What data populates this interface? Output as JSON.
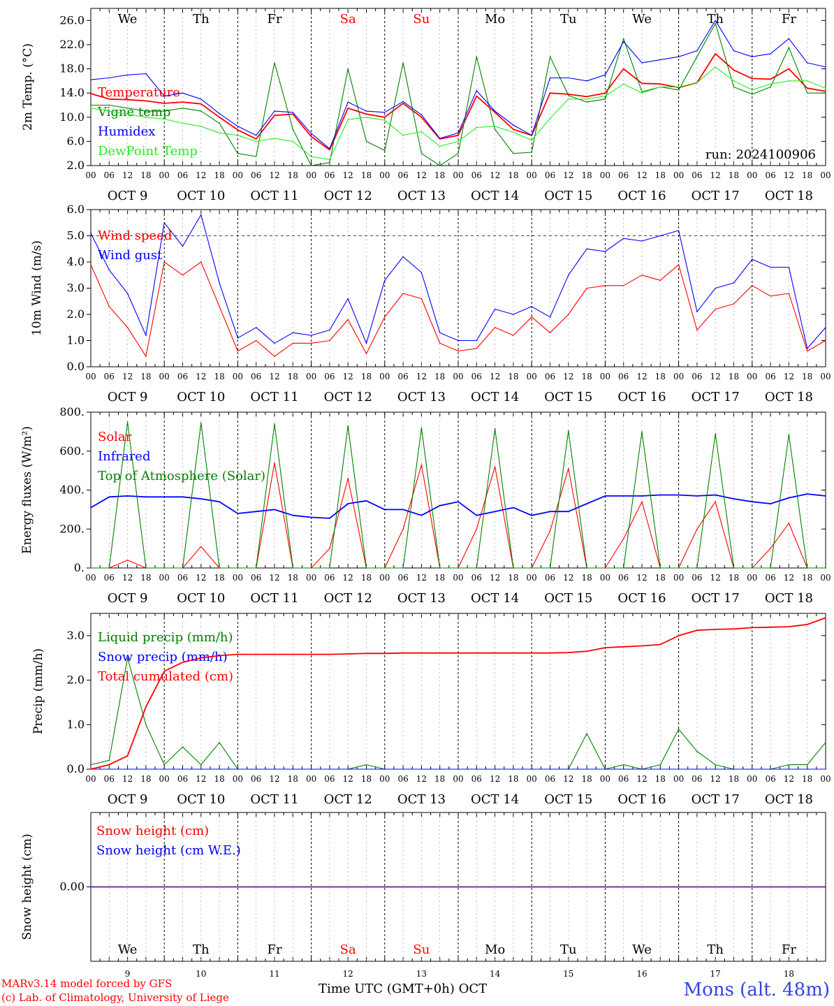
{
  "run": "run: 2024100906",
  "days": [
    {
      "top": "We",
      "color": "#000000",
      "bottom": "OCT  9",
      "num": "9"
    },
    {
      "top": "Th",
      "color": "#000000",
      "bottom": "OCT 10",
      "num": "10"
    },
    {
      "top": "Fr",
      "color": "#000000",
      "bottom": "OCT 11",
      "num": "11"
    },
    {
      "top": "Sa",
      "color": "#ff0000",
      "bottom": "OCT 12",
      "num": "12"
    },
    {
      "top": "Su",
      "color": "#ff0000",
      "bottom": "OCT 13",
      "num": "13"
    },
    {
      "top": "Mo",
      "color": "#000000",
      "bottom": "OCT 14",
      "num": "14"
    },
    {
      "top": "Tu",
      "color": "#000000",
      "bottom": "OCT 15",
      "num": "15"
    },
    {
      "top": "We",
      "color": "#000000",
      "bottom": "OCT 16",
      "num": "16"
    },
    {
      "top": "Th",
      "color": "#000000",
      "bottom": "OCT 17",
      "num": "17"
    },
    {
      "top": "Fr",
      "color": "#000000",
      "bottom": "OCT 18",
      "num": "18"
    }
  ],
  "hour_ticks": [
    "00",
    "06",
    "12",
    "18"
  ],
  "footer": {
    "model": "MARv3.14 model forced by GFS",
    "lab": "(c) Lab. of Climatology, University of Liege",
    "axis": "Time UTC (GMT+0h) OCT",
    "station": "Mons (alt. 48m)"
  },
  "chart_data": [
    {
      "type": "line",
      "ylabel": "2m Temp. (°C)",
      "ylim": [
        2,
        28
      ],
      "yticks": [
        "2.0",
        "6.0",
        "10.0",
        "14.0",
        "18.0",
        "22.0",
        "26.0"
      ],
      "x_hours": [
        0,
        6,
        12,
        18,
        24,
        30,
        36,
        42,
        48,
        54,
        60,
        66,
        72,
        78,
        84,
        90,
        96,
        102,
        108,
        114,
        120,
        126,
        132,
        138,
        144,
        150,
        156,
        162,
        168,
        174,
        180,
        186,
        192,
        198,
        204,
        210,
        216,
        222,
        228,
        234,
        240
      ],
      "series": [
        {
          "name": "Temperature",
          "color": "#ff0000",
          "values": [
            13.9,
            13.0,
            12.9,
            12.7,
            12.3,
            12.5,
            12.2,
            10.0,
            7.9,
            6.4,
            10.3,
            10.5,
            6.8,
            4.6,
            11.5,
            10.5,
            10.0,
            12.3,
            10.0,
            6.4,
            7.0,
            13.5,
            10.8,
            8.0,
            7.0,
            14.0,
            13.8,
            13.4,
            14.0,
            18.0,
            15.6,
            15.5,
            14.9,
            15.7,
            20.5,
            17.8,
            16.4,
            16.3,
            18.0,
            14.8,
            14.3
          ]
        },
        {
          "name": "Vigne temp",
          "color": "#008000",
          "values": [
            12.0,
            12.0,
            11.5,
            11.0,
            11.0,
            11.5,
            11.0,
            9.0,
            4.0,
            3.5,
            19.0,
            8.0,
            2.0,
            2.5,
            18.0,
            6.0,
            4.5,
            19.0,
            4.0,
            2.0,
            4.0,
            20.0,
            8.0,
            4.0,
            4.2,
            20.0,
            13.6,
            12.5,
            13.0,
            23.0,
            14.2,
            15.0,
            14.5,
            20.0,
            25.5,
            15.0,
            13.8,
            15.0,
            21.5,
            14.0,
            14.0
          ]
        },
        {
          "name": "Humidex",
          "color": "#0000ff",
          "values": [
            16.2,
            16.5,
            17.0,
            17.2,
            13.5,
            14.0,
            13.0,
            10.6,
            8.5,
            7.0,
            11.0,
            10.8,
            7.3,
            4.8,
            12.5,
            11.0,
            10.8,
            12.6,
            10.4,
            6.5,
            7.4,
            14.4,
            11.0,
            8.7,
            7.0,
            16.5,
            16.5,
            16.0,
            17.0,
            22.5,
            19.0,
            19.5,
            20.0,
            21.0,
            26.0,
            21.0,
            20.0,
            20.5,
            23.0,
            19.0,
            18.3
          ]
        },
        {
          "name": "DewPoint Temp",
          "color": "#22ee22",
          "values": [
            11.5,
            11.0,
            10.5,
            10.0,
            9.7,
            9.0,
            8.5,
            7.4,
            7.0,
            6.0,
            6.5,
            6.0,
            3.5,
            3.0,
            9.6,
            10.0,
            9.5,
            7.0,
            7.6,
            5.2,
            6.0,
            8.3,
            8.5,
            7.5,
            6.2,
            9.8,
            13.0,
            13.0,
            13.5,
            15.5,
            14.0,
            15.0,
            15.0,
            15.7,
            18.3,
            16.0,
            14.5,
            15.5,
            16.0,
            16.0,
            14.8
          ]
        }
      ]
    },
    {
      "type": "line",
      "ylabel": "10m Wind (m/s)",
      "ylim": [
        0,
        6
      ],
      "yticks": [
        "0.0",
        "1.0",
        "2.0",
        "3.0",
        "4.0",
        "5.0",
        "6.0"
      ],
      "reference_line": 5.0,
      "x_hours": [
        0,
        6,
        12,
        18,
        24,
        30,
        36,
        42,
        48,
        54,
        60,
        66,
        72,
        78,
        84,
        90,
        96,
        102,
        108,
        114,
        120,
        126,
        132,
        138,
        144,
        150,
        156,
        162,
        168,
        174,
        180,
        186,
        192,
        198,
        204,
        210,
        216,
        222,
        228,
        234,
        240
      ],
      "series": [
        {
          "name": "Wind speed",
          "color": "#ff0000",
          "values": [
            3.9,
            2.3,
            1.5,
            0.4,
            4.0,
            3.5,
            4.0,
            2.3,
            0.6,
            1.0,
            0.4,
            0.9,
            0.9,
            1.0,
            1.8,
            0.5,
            1.9,
            2.8,
            2.6,
            0.9,
            0.6,
            0.7,
            1.5,
            1.2,
            1.9,
            1.3,
            2.0,
            3.0,
            3.1,
            3.1,
            3.5,
            3.3,
            3.9,
            1.4,
            2.2,
            2.4,
            3.1,
            2.7,
            2.8,
            0.6,
            1.0
          ]
        },
        {
          "name": "Wind gust",
          "color": "#0000ff",
          "values": [
            5.1,
            3.7,
            2.8,
            1.2,
            5.5,
            4.6,
            5.8,
            3.2,
            1.1,
            1.5,
            0.9,
            1.3,
            1.2,
            1.4,
            2.6,
            0.9,
            3.3,
            4.2,
            3.6,
            1.3,
            1.0,
            1.0,
            2.2,
            2.0,
            2.3,
            1.9,
            3.5,
            4.5,
            4.4,
            4.9,
            4.8,
            5.0,
            5.2,
            2.1,
            3.0,
            3.2,
            4.1,
            3.8,
            3.8,
            0.7,
            1.5
          ]
        }
      ]
    },
    {
      "type": "line",
      "ylabel": "Energy fluxes (W/m²)",
      "ylim": [
        0,
        800
      ],
      "yticks": [
        "0.",
        "200.",
        "400.",
        "600.",
        "800."
      ],
      "x_hours": [
        0,
        6,
        12,
        18,
        24,
        30,
        36,
        42,
        48,
        54,
        60,
        66,
        72,
        78,
        84,
        90,
        96,
        102,
        108,
        114,
        120,
        126,
        132,
        138,
        144,
        150,
        156,
        162,
        168,
        174,
        180,
        186,
        192,
        198,
        204,
        210,
        216,
        222,
        228,
        234,
        240
      ],
      "series": [
        {
          "name": "Solar",
          "color": "#ff0000",
          "values": [
            0,
            0,
            40,
            0,
            0,
            0,
            110,
            0,
            0,
            0,
            540,
            0,
            0,
            100,
            460,
            0,
            0,
            200,
            530,
            0,
            0,
            200,
            520,
            0,
            0,
            190,
            510,
            0,
            0,
            150,
            340,
            0,
            0,
            200,
            340,
            0,
            0,
            100,
            230,
            0,
            0
          ]
        },
        {
          "name": "Infrared",
          "color": "#0000ff",
          "values": [
            310,
            365,
            370,
            365,
            365,
            365,
            355,
            340,
            280,
            290,
            300,
            270,
            260,
            255,
            330,
            345,
            300,
            300,
            270,
            320,
            340,
            270,
            290,
            310,
            270,
            290,
            290,
            330,
            370,
            370,
            370,
            375,
            375,
            370,
            375,
            355,
            340,
            330,
            360,
            380,
            370
          ]
        },
        {
          "name": "Top of Atmosphere (Solar)",
          "color": "#008000",
          "values": [
            0,
            0,
            750,
            0,
            0,
            0,
            745,
            0,
            0,
            0,
            740,
            0,
            0,
            0,
            730,
            0,
            0,
            0,
            720,
            0,
            0,
            0,
            715,
            0,
            0,
            0,
            705,
            0,
            0,
            0,
            700,
            0,
            0,
            0,
            690,
            0,
            0,
            0,
            685,
            0,
            0
          ]
        }
      ]
    },
    {
      "type": "line",
      "ylabel": "Precip (mm/h)",
      "ylim": [
        0,
        3.5
      ],
      "yticks": [
        "0.0",
        "1.0",
        "2.0",
        "3.0"
      ],
      "x_hours": [
        0,
        6,
        12,
        18,
        24,
        30,
        36,
        42,
        48,
        54,
        60,
        66,
        72,
        78,
        84,
        90,
        96,
        102,
        108,
        114,
        120,
        126,
        132,
        138,
        144,
        150,
        156,
        162,
        168,
        174,
        180,
        186,
        192,
        198,
        204,
        210,
        216,
        222,
        228,
        234,
        240
      ],
      "series": [
        {
          "name": "Liquid precip (mm/h)",
          "color": "#008000",
          "values": [
            0.1,
            0.2,
            2.5,
            1.0,
            0.1,
            0.5,
            0.1,
            0.6,
            0.0,
            0.0,
            0.0,
            0.0,
            0.0,
            0.0,
            0.0,
            0.1,
            0.0,
            0.0,
            0.0,
            0.0,
            0.0,
            0.0,
            0.0,
            0.0,
            0.0,
            0.0,
            0.0,
            0.8,
            0.0,
            0.1,
            0.0,
            0.1,
            0.9,
            0.4,
            0.1,
            0.0,
            0.0,
            0.0,
            0.1,
            0.1,
            0.6
          ]
        },
        {
          "name": "Snow precip (mm/h)",
          "color": "#0000ff",
          "values": [
            0,
            0,
            0,
            0,
            0,
            0,
            0,
            0,
            0,
            0,
            0,
            0,
            0,
            0,
            0,
            0,
            0,
            0,
            0,
            0,
            0,
            0,
            0,
            0,
            0,
            0,
            0,
            0,
            0,
            0,
            0,
            0,
            0,
            0,
            0,
            0,
            0,
            0,
            0,
            0,
            0
          ]
        },
        {
          "name": "Total cumulated (cm)",
          "color": "#ff0000",
          "values": [
            0.0,
            0.1,
            0.3,
            1.4,
            2.2,
            2.4,
            2.5,
            2.55,
            2.58,
            2.58,
            2.58,
            2.58,
            2.58,
            2.58,
            2.59,
            2.6,
            2.6,
            2.61,
            2.61,
            2.61,
            2.61,
            2.61,
            2.61,
            2.61,
            2.61,
            2.61,
            2.62,
            2.65,
            2.73,
            2.75,
            2.77,
            2.8,
            3.0,
            3.12,
            3.14,
            3.15,
            3.18,
            3.19,
            3.2,
            3.25,
            3.4
          ]
        }
      ]
    },
    {
      "type": "line",
      "ylabel": "Snow height (cm)",
      "ylim": [
        -1,
        1
      ],
      "yticks": [
        "0.00"
      ],
      "x_hours": [
        0,
        240
      ],
      "series": [
        {
          "name": "Snow height (cm)",
          "color": "#ff0000",
          "values": [
            0,
            0
          ]
        },
        {
          "name": "Snow height (cm W.E.)",
          "color": "#0000ff",
          "values": [
            0,
            0
          ]
        }
      ]
    }
  ]
}
